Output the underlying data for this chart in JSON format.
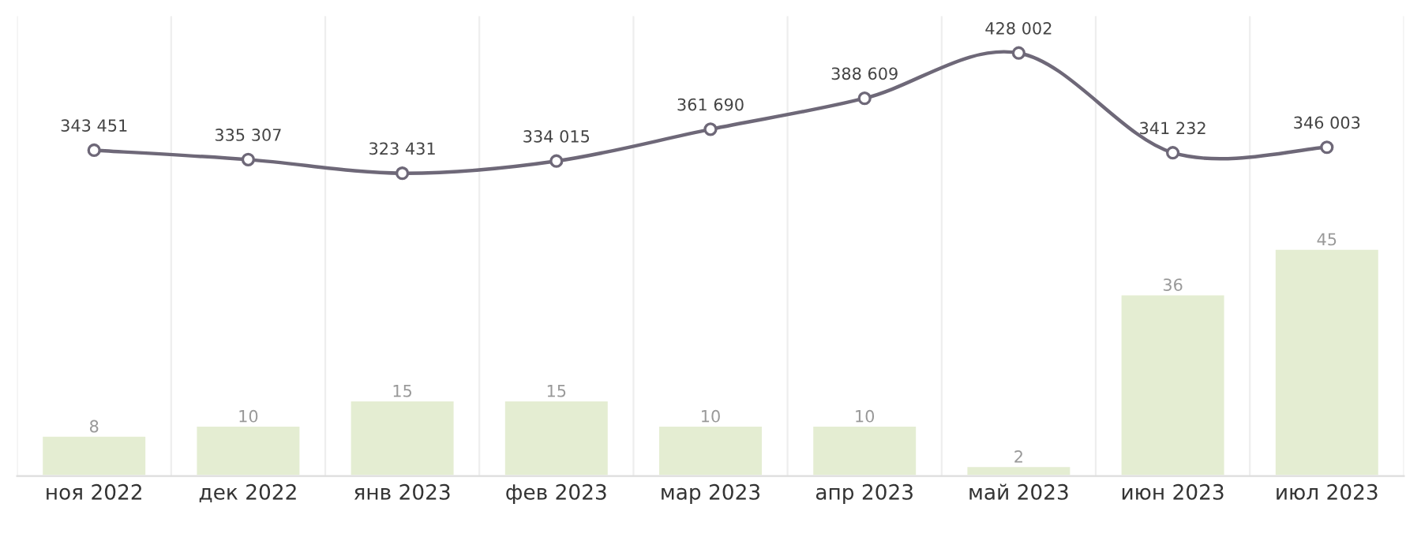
{
  "chart_data": {
    "type": "bar",
    "categories": [
      "ноя 2022",
      "дек 2022",
      "янв 2023",
      "фев 2023",
      "мар 2023",
      "апр 2023",
      "май 2023",
      "июн 2023",
      "июл 2023"
    ],
    "series": [
      {
        "color": "#e4edd2",
        "values": [
          8,
          10,
          15,
          15,
          10,
          10,
          2,
          36,
          45
        ]
      },
      {
        "type": "line",
        "axis": "y2",
        "color": "#6e6878",
        "marker": "circle",
        "values": [
          343451,
          335307,
          323431,
          334015,
          361690,
          388609,
          428002,
          341232,
          346003
        ]
      }
    ],
    "ylim": [
      0,
      91
    ],
    "y2lim": [
      60000,
      460000
    ],
    "data_labels": true,
    "grid": "x",
    "legend": false,
    "tick_labels": "x"
  }
}
